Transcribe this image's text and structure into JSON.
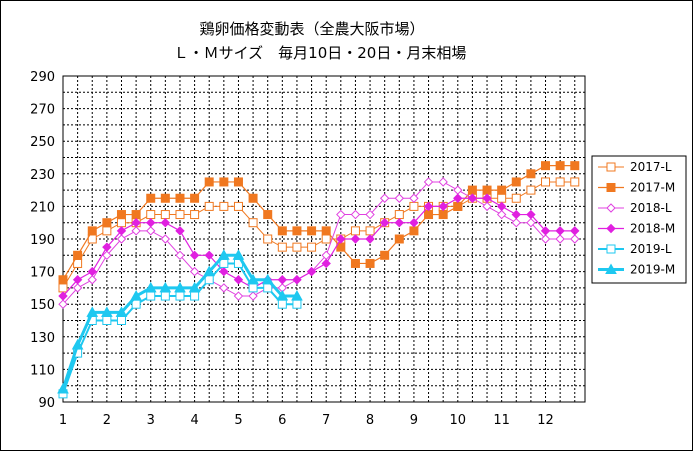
{
  "chart_data": {
    "type": "line",
    "title_line1": "鶏卵価格変動表（全農大阪市場）",
    "title_line2": "Ｌ・Ｍサイズ　毎月10日・20日・月末相場",
    "xlabel": "",
    "ylabel": "",
    "ylim": [
      90,
      290
    ],
    "yticks": [
      90,
      110,
      130,
      150,
      170,
      190,
      210,
      230,
      250,
      270,
      290
    ],
    "xlim": [
      1,
      12.9
    ],
    "xticks": [
      1,
      2,
      3,
      4,
      5,
      6,
      7,
      8,
      9,
      10,
      11,
      12
    ],
    "grid": true,
    "legend_position": "right",
    "x": [
      1,
      1.333,
      1.667,
      2,
      2.333,
      2.667,
      3,
      3.333,
      3.667,
      4,
      4.333,
      4.667,
      5,
      5.333,
      5.667,
      6,
      6.333,
      6.667,
      7,
      7.333,
      7.667,
      8,
      8.333,
      8.667,
      9,
      9.333,
      9.667,
      10,
      10.333,
      10.667,
      11,
      11.333,
      11.667,
      12,
      12.333,
      12.667
    ],
    "series": [
      {
        "name": "2017-L",
        "color": "#f07820",
        "marker": "square-open",
        "width": 1,
        "values": [
          160,
          175,
          190,
          195,
          200,
          200,
          205,
          205,
          205,
          205,
          210,
          210,
          210,
          200,
          190,
          185,
          185,
          185,
          190,
          190,
          195,
          195,
          200,
          205,
          210,
          210,
          210,
          210,
          215,
          215,
          215,
          215,
          220,
          225,
          225,
          225
        ]
      },
      {
        "name": "2017-M",
        "color": "#f07820",
        "marker": "square-filled",
        "width": 1.2,
        "values": [
          165,
          180,
          195,
          200,
          205,
          205,
          215,
          215,
          215,
          215,
          225,
          225,
          225,
          215,
          205,
          195,
          195,
          195,
          195,
          185,
          175,
          175,
          180,
          190,
          195,
          205,
          205,
          210,
          220,
          220,
          220,
          225,
          230,
          235,
          235,
          235
        ]
      },
      {
        "name": "2018-L",
        "color": "#e040e0",
        "marker": "diamond-open",
        "width": 1,
        "values": [
          150,
          160,
          165,
          180,
          190,
          195,
          195,
          190,
          180,
          170,
          165,
          160,
          155,
          155,
          160,
          160,
          165,
          170,
          180,
          205,
          205,
          205,
          215,
          215,
          215,
          225,
          225,
          220,
          215,
          210,
          205,
          200,
          200,
          190,
          190,
          190
        ]
      },
      {
        "name": "2018-M",
        "color": "#e020e0",
        "marker": "diamond-filled",
        "width": 1.2,
        "values": [
          155,
          165,
          170,
          185,
          195,
          200,
          200,
          200,
          195,
          180,
          180,
          170,
          165,
          160,
          165,
          165,
          165,
          170,
          175,
          190,
          190,
          190,
          200,
          200,
          200,
          210,
          210,
          215,
          215,
          215,
          210,
          205,
          205,
          195,
          195,
          195
        ]
      },
      {
        "name": "2019-L",
        "color": "#1ec8f0",
        "marker": "square-open",
        "width": 2,
        "values": [
          95,
          120,
          140,
          140,
          140,
          150,
          155,
          155,
          155,
          155,
          165,
          175,
          175,
          160,
          160,
          150,
          150,
          null,
          null,
          null,
          null,
          null,
          null,
          null,
          null,
          null,
          null,
          null,
          null,
          null,
          null,
          null,
          null,
          null,
          null,
          null
        ]
      },
      {
        "name": "2019-M",
        "color": "#1ec8f0",
        "marker": "triangle-filled",
        "width": 3,
        "values": [
          98,
          125,
          145,
          145,
          145,
          155,
          160,
          160,
          160,
          160,
          170,
          180,
          180,
          165,
          165,
          155,
          155,
          null,
          null,
          null,
          null,
          null,
          null,
          null,
          null,
          null,
          null,
          null,
          null,
          null,
          null,
          null,
          null,
          null,
          null,
          null
        ]
      }
    ]
  }
}
